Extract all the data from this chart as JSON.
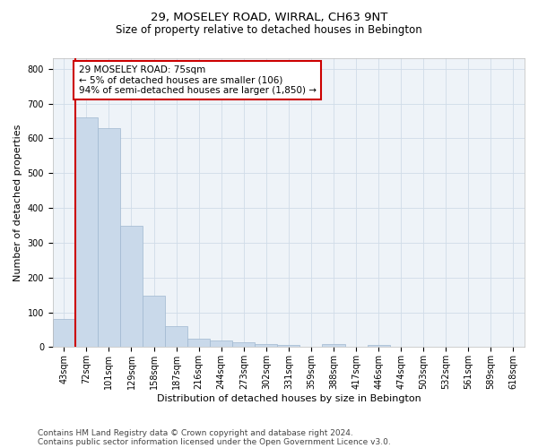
{
  "title": "29, MOSELEY ROAD, WIRRAL, CH63 9NT",
  "subtitle": "Size of property relative to detached houses in Bebington",
  "xlabel": "Distribution of detached houses by size in Bebington",
  "ylabel": "Number of detached properties",
  "categories": [
    "43sqm",
    "72sqm",
    "101sqm",
    "129sqm",
    "158sqm",
    "187sqm",
    "216sqm",
    "244sqm",
    "273sqm",
    "302sqm",
    "331sqm",
    "359sqm",
    "388sqm",
    "417sqm",
    "446sqm",
    "474sqm",
    "503sqm",
    "532sqm",
    "561sqm",
    "589sqm",
    "618sqm"
  ],
  "values": [
    80,
    660,
    630,
    348,
    148,
    60,
    25,
    20,
    15,
    10,
    5,
    0,
    8,
    0,
    5,
    0,
    0,
    0,
    0,
    0,
    0
  ],
  "bar_color": "#c9d9ea",
  "bar_edge_color": "#a0b8d0",
  "grid_color": "#d0dce8",
  "background_color": "#eef3f8",
  "vline_x_index": 1,
  "vline_color": "#cc0000",
  "annotation_text": "29 MOSELEY ROAD: 75sqm\n← 5% of detached houses are smaller (106)\n94% of semi-detached houses are larger (1,850) →",
  "annotation_box_color": "#ffffff",
  "annotation_box_edge": "#cc0000",
  "ylim": [
    0,
    830
  ],
  "yticks": [
    0,
    100,
    200,
    300,
    400,
    500,
    600,
    700,
    800
  ],
  "footer_line1": "Contains HM Land Registry data © Crown copyright and database right 2024.",
  "footer_line2": "Contains public sector information licensed under the Open Government Licence v3.0.",
  "title_fontsize": 9.5,
  "subtitle_fontsize": 8.5,
  "axis_label_fontsize": 8,
  "tick_fontsize": 7,
  "annotation_fontsize": 7.5,
  "footer_fontsize": 6.5
}
